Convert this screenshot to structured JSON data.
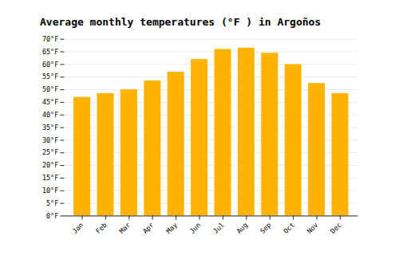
{
  "chart_data": {
    "type": "bar",
    "title": "Average monthly temperatures (°F ) in Argoños",
    "categories": [
      "Jan",
      "Feb",
      "Mar",
      "Apr",
      "May",
      "Jun",
      "Jul",
      "Aug",
      "Sep",
      "Oct",
      "Nov",
      "Dec"
    ],
    "values": [
      47,
      48.5,
      50,
      53.5,
      57,
      62,
      66,
      66.5,
      64.5,
      60,
      52.5,
      48.5
    ],
    "color": "#FFB300",
    "ylim": [
      0,
      70
    ],
    "yticks": [
      {
        "value": 0,
        "label": "0°F"
      },
      {
        "value": 5,
        "label": "5°F"
      },
      {
        "value": 10,
        "label": "10°F"
      },
      {
        "value": 15,
        "label": "15°F"
      },
      {
        "value": 20,
        "label": "20°F"
      },
      {
        "value": 25,
        "label": "25°F"
      },
      {
        "value": 30,
        "label": "30°F"
      },
      {
        "value": 35,
        "label": "35°F"
      },
      {
        "value": 40,
        "label": "40°F"
      },
      {
        "value": 45,
        "label": "45°F"
      },
      {
        "value": 50,
        "label": "50°F"
      },
      {
        "value": 55,
        "label": "55°F"
      },
      {
        "value": 60,
        "label": "60°F"
      },
      {
        "value": 65,
        "label": "65°F"
      },
      {
        "value": 70,
        "label": "70°F"
      }
    ],
    "grid": true
  }
}
